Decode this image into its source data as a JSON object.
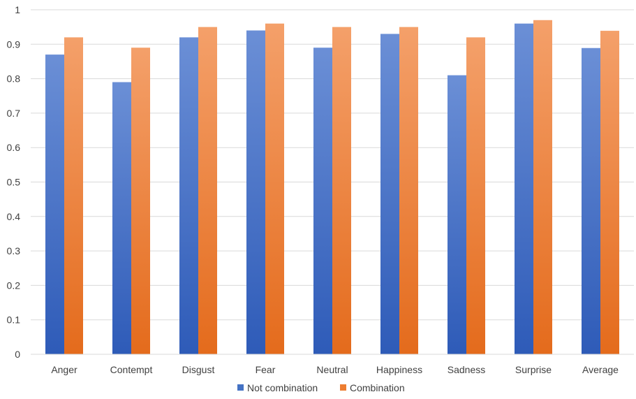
{
  "chart_data": {
    "type": "bar",
    "categories": [
      "Anger",
      "Contempt",
      "Disgust",
      "Fear",
      "Neutral",
      "Happiness",
      "Sadness",
      "Surprise",
      "Average"
    ],
    "series": [
      {
        "name": "Not combination",
        "values": [
          0.87,
          0.79,
          0.92,
          0.94,
          0.89,
          0.93,
          0.81,
          0.96,
          0.889
        ],
        "color": "#4472c4"
      },
      {
        "name": "Combination",
        "values": [
          0.92,
          0.89,
          0.95,
          0.96,
          0.95,
          0.95,
          0.92,
          0.97,
          0.939
        ],
        "color": "#ed7d31"
      }
    ],
    "title": "",
    "xlabel": "",
    "ylabel": "",
    "ylim": [
      0,
      1
    ],
    "yticks": [
      0,
      0.1,
      0.2,
      0.3,
      0.4,
      0.5,
      0.6,
      0.7,
      0.8,
      0.9,
      1
    ],
    "ytick_labels": [
      "0",
      "0.1",
      "0.2",
      "0.3",
      "0.4",
      "0.5",
      "0.6",
      "0.7",
      "0.8",
      "0.9",
      "1"
    ],
    "grid": true,
    "legend_position": "bottom-center"
  }
}
